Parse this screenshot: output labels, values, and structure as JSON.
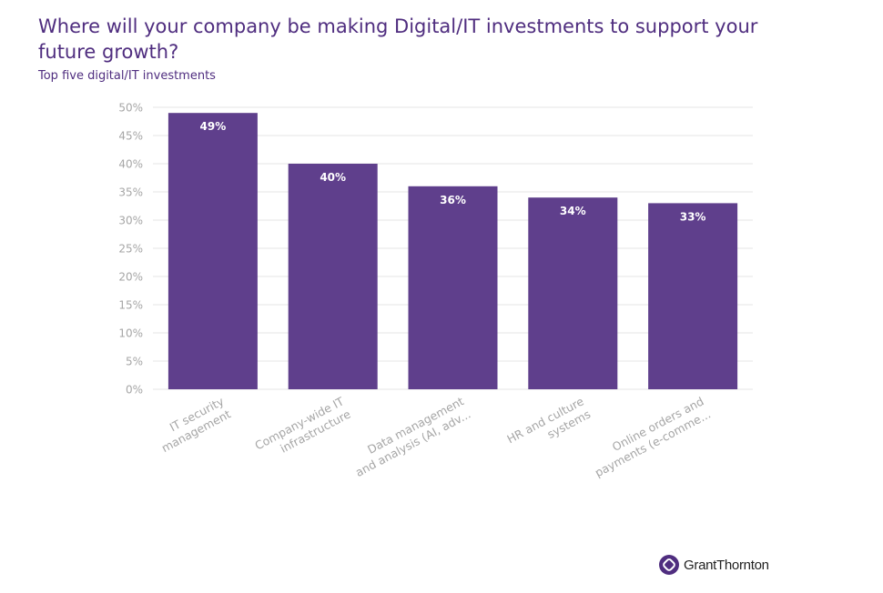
{
  "header": {
    "title": "Where will your company be making Digital/IT investments to support your future growth?",
    "subtitle": "Top five digital/IT investments"
  },
  "brand": {
    "name": "GrantThornton",
    "color": "#4f2d7f"
  },
  "chart_data": {
    "type": "bar",
    "title": "Where will your company be making Digital/IT investments to support your future growth?",
    "subtitle": "Top five digital/IT investments",
    "categories": [
      [
        "IT security",
        "management"
      ],
      [
        "Company-wide IT",
        "infrastructure"
      ],
      [
        "Data management",
        "and analysis (AI, adv..."
      ],
      [
        "HR and culture",
        "systems"
      ],
      [
        "Online orders and",
        "payments (e-comme..."
      ]
    ],
    "values": [
      49,
      40,
      36,
      34,
      33
    ],
    "labels": [
      "49%",
      "40%",
      "36%",
      "34%",
      "33%"
    ],
    "ylim": [
      0,
      50
    ],
    "yticks": [
      0,
      5,
      10,
      15,
      20,
      25,
      30,
      35,
      40,
      45,
      50
    ],
    "ytick_labels": [
      "0%",
      "5%",
      "10%",
      "15%",
      "20%",
      "25%",
      "30%",
      "35%",
      "40%",
      "45%",
      "50%"
    ],
    "bar_color": "#5f3f8c",
    "grid": true,
    "xlabel": "",
    "ylabel": ""
  }
}
